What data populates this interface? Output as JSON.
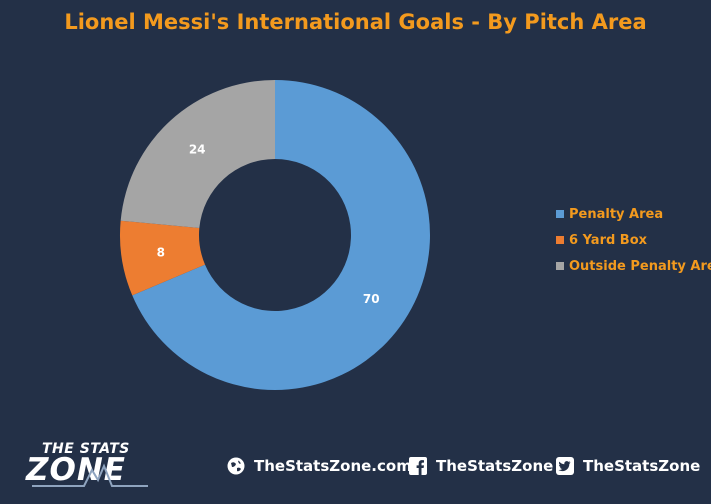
{
  "title": "Lionel Messi's International Goals - By Pitch Area",
  "chart_data": {
    "type": "pie",
    "style": "doughnut",
    "title": "Lionel Messi's International Goals - By Pitch Area",
    "categories": [
      "Penalty Area",
      "6 Yard Box",
      "Outside Penalty Area"
    ],
    "values": [
      70,
      8,
      24
    ],
    "colors": [
      "#5b9bd5",
      "#ed7d31",
      "#a5a5a5"
    ],
    "data_labels": [
      "70",
      "8",
      "24"
    ],
    "legend_position": "right"
  },
  "footer": {
    "logo_top": "THE STATS",
    "logo_main": "ZONE",
    "website": {
      "icon": "globe-icon",
      "label": "TheStatsZone.com"
    },
    "facebook": {
      "icon": "facebook-icon",
      "label": "TheStatsZone"
    },
    "twitter": {
      "icon": "twitter-icon",
      "label": "TheStatsZone"
    }
  }
}
